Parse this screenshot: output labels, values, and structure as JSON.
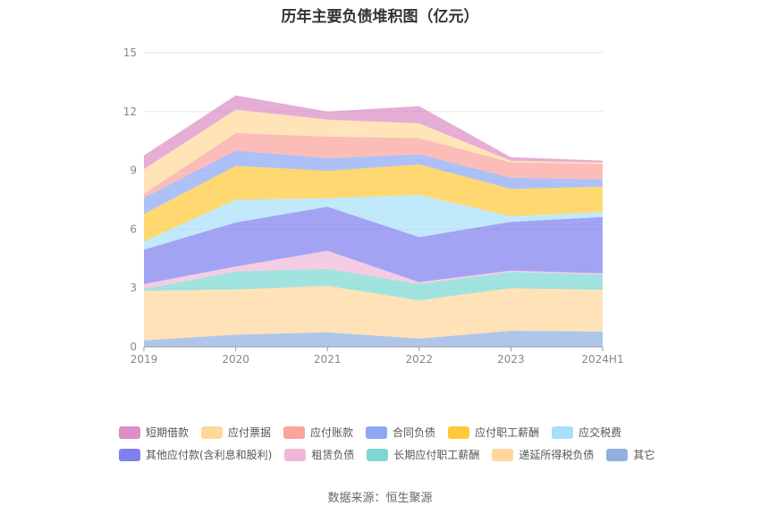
{
  "title": "历年主要负债堆积图（亿元）",
  "source": "数据来源：恒生聚源",
  "chart_data": {
    "type": "area",
    "stacked": true,
    "categories": [
      "2019",
      "2020",
      "2021",
      "2022",
      "2023",
      "2024H1"
    ],
    "ylim": [
      0,
      15
    ],
    "yticks": [
      "0",
      "3",
      "6",
      "9",
      "12",
      "15"
    ],
    "grid": true,
    "legend_position": "bottom",
    "series": [
      {
        "name": "其它",
        "color": "#8fb0e0",
        "values": [
          0.33,
          0.62,
          0.74,
          0.42,
          0.82,
          0.78
        ]
      },
      {
        "name": "递延所得税负债",
        "color": "#ffd79c",
        "values": [
          2.52,
          2.31,
          2.38,
          1.95,
          2.18,
          2.13
        ]
      },
      {
        "name": "长期应付职工薪酬",
        "color": "#7dd8d2",
        "values": [
          0.1,
          0.92,
          0.86,
          0.83,
          0.82,
          0.78
        ]
      },
      {
        "name": "租赁负债",
        "color": "#f0b8d8",
        "values": [
          0.25,
          0.25,
          0.92,
          0.1,
          0.07,
          0.06
        ]
      },
      {
        "name": "其他应付款(含利息和股利)",
        "color": "#7f7ff0",
        "values": [
          1.76,
          2.24,
          2.25,
          2.3,
          2.49,
          2.87
        ]
      },
      {
        "name": "应交税费",
        "color": "#a8e0fa",
        "values": [
          0.42,
          1.16,
          0.43,
          2.15,
          0.28,
          0.25
        ]
      },
      {
        "name": "应付职工薪酬",
        "color": "#ffc93c",
        "values": [
          1.4,
          1.73,
          1.4,
          1.55,
          1.4,
          1.3
        ]
      },
      {
        "name": "合同负债",
        "color": "#8ea7f5",
        "values": [
          0.83,
          0.78,
          0.64,
          0.52,
          0.57,
          0.37
        ]
      },
      {
        "name": "应付账款",
        "color": "#fba49c",
        "values": [
          0.2,
          0.89,
          1.11,
          0.83,
          0.79,
          0.79
        ]
      },
      {
        "name": "应付票据",
        "color": "#ffd99c",
        "values": [
          1.25,
          1.2,
          0.86,
          0.75,
          0.07,
          0.07
        ]
      },
      {
        "name": "短期借款",
        "color": "#dd8ec5",
        "values": [
          0.7,
          0.72,
          0.41,
          0.88,
          0.18,
          0.1
        ]
      }
    ],
    "legend_order": [
      "短期借款",
      "应付票据",
      "应付账款",
      "合同负债",
      "应付职工薪酬",
      "应交税费",
      "其他应付款(含利息和股利)",
      "租赁负债",
      "长期应付职工薪酬",
      "递延所得税负债",
      "其它"
    ]
  }
}
